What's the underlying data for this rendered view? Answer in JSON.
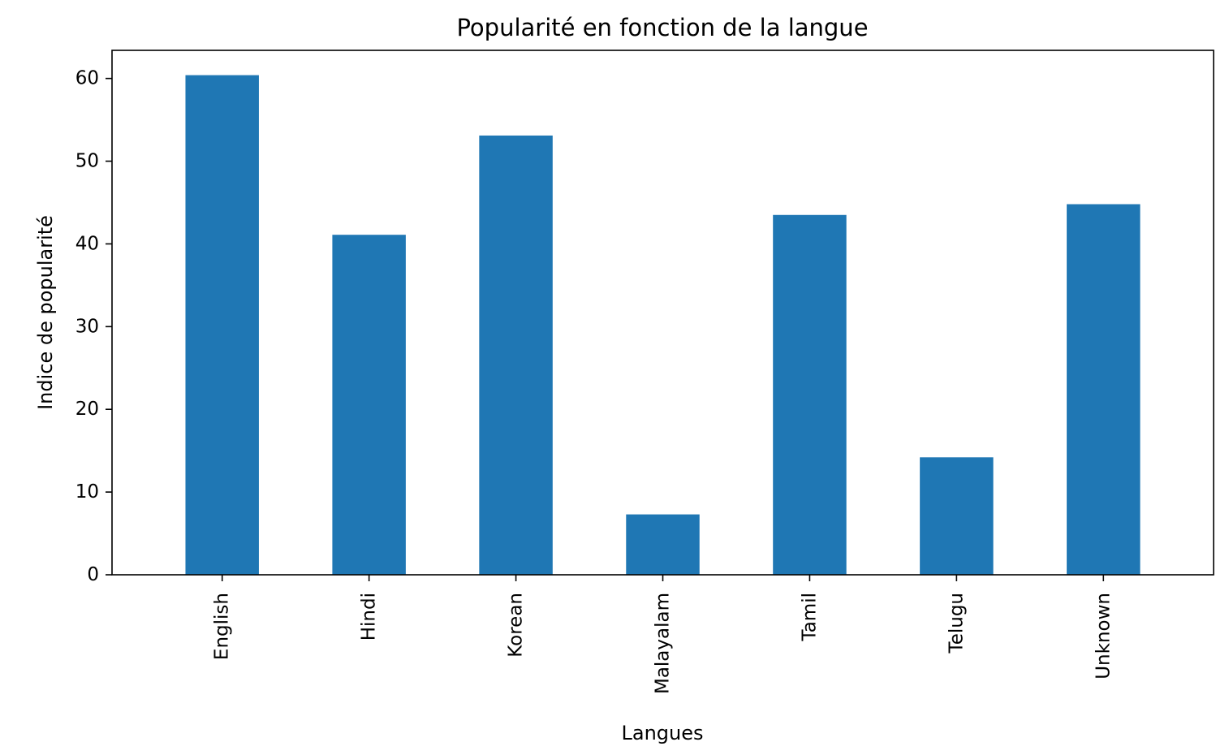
{
  "chart_data": {
    "type": "bar",
    "title": "Popularité en fonction de la langue",
    "xlabel": "Langues",
    "ylabel": "Indice de popularité",
    "categories": [
      "English",
      "Hindi",
      "Korean",
      "Malayalam",
      "Tamil",
      "Telugu",
      "Unknown"
    ],
    "values": [
      60.4,
      41.1,
      53.1,
      7.3,
      43.5,
      14.2,
      44.8
    ],
    "ylim": [
      0,
      63.4
    ],
    "yticks": [
      0,
      10,
      20,
      30,
      40,
      50,
      60
    ],
    "bar_color": "#1f77b4",
    "grid": false,
    "legend": "none"
  }
}
